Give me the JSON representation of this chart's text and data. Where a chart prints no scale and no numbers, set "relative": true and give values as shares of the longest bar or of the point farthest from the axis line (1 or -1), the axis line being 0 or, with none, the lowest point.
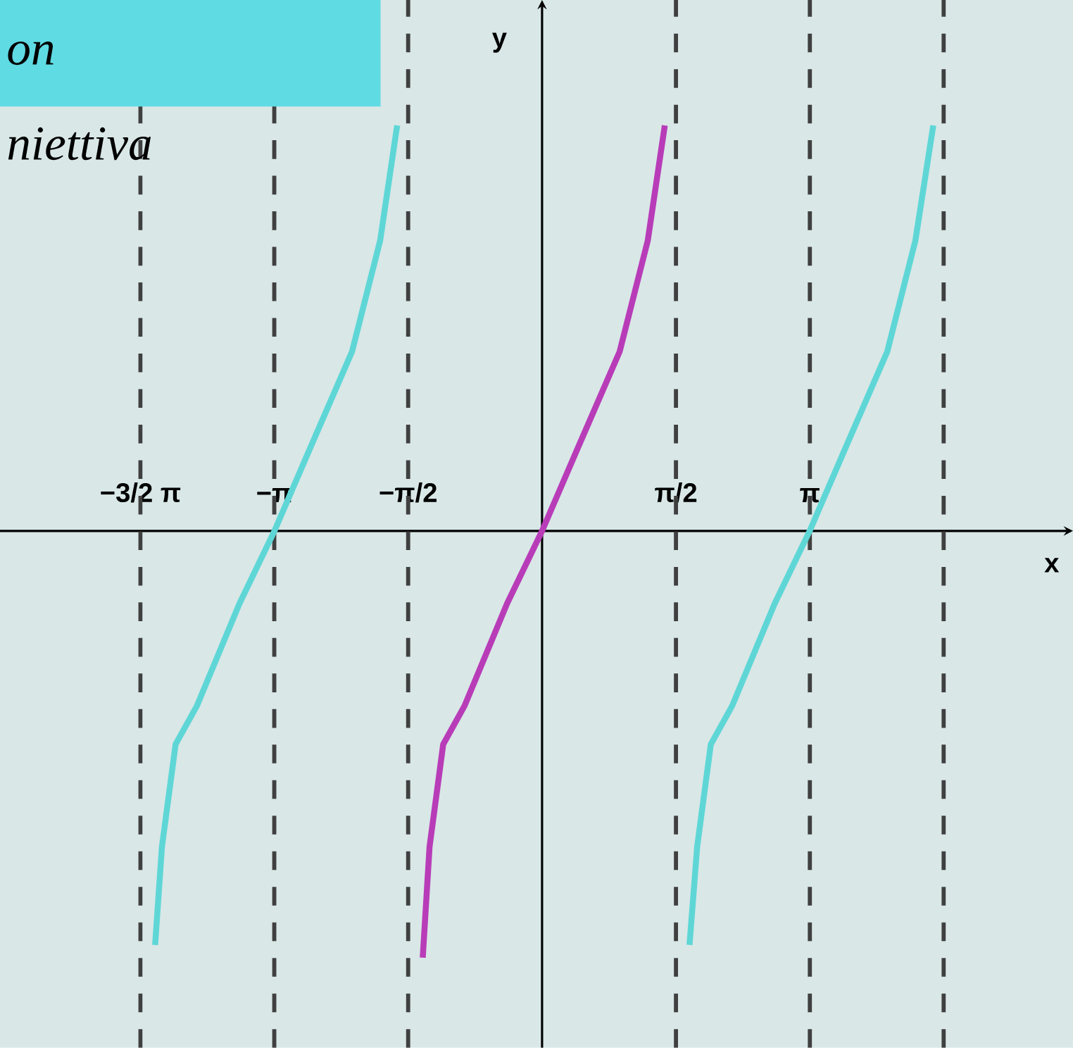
{
  "chart_data": {
    "type": "line",
    "title": "on",
    "subtitle": "niettiva",
    "xlabel": "x",
    "ylabel": "y",
    "relative": true,
    "tick_labels": "x",
    "xlim": [
      -6.36,
      6.23
    ],
    "xticks": [
      {
        "value": -4.712,
        "label": "−3/2 π"
      },
      {
        "value": -3.142,
        "label": "−π"
      },
      {
        "value": -1.571,
        "label": "−π/2"
      },
      {
        "value": 1.571,
        "label": "π/2"
      },
      {
        "value": 3.142,
        "label": "π"
      }
    ],
    "ref_lines": [
      {
        "axis": "x",
        "value": -4.712,
        "line_style": "dashed"
      },
      {
        "axis": "x",
        "value": -3.142,
        "line_style": "dashed"
      },
      {
        "axis": "x",
        "value": -1.571,
        "line_style": "dashed"
      },
      {
        "axis": "x",
        "value": 1.571,
        "line_style": "dashed"
      },
      {
        "axis": "x",
        "value": 3.142,
        "line_style": "dashed"
      },
      {
        "axis": "x",
        "value": 4.712,
        "line_style": "dashed"
      }
    ],
    "series": [
      {
        "color": "#5fd6d6",
        "x": [
          -4.54,
          -4.46,
          -4.3,
          -4.05,
          -3.55,
          -3.14,
          -2.73,
          -2.23,
          -1.9,
          -1.7
        ],
        "values": [
          -0.97,
          -0.74,
          -0.5,
          -0.41,
          -0.17,
          0,
          0.19,
          0.42,
          0.68,
          0.95
        ]
      },
      {
        "color": "#b83cb8",
        "x": [
          -1.4,
          -1.32,
          -1.16,
          -0.91,
          -0.41,
          0,
          0.41,
          0.91,
          1.24,
          1.44
        ],
        "values": [
          -1.0,
          -0.74,
          -0.5,
          -0.41,
          -0.17,
          0,
          0.19,
          0.42,
          0.68,
          0.95
        ]
      },
      {
        "color": "#5fd6d6",
        "x": [
          1.73,
          1.82,
          1.98,
          2.23,
          2.73,
          3.14,
          3.55,
          4.05,
          4.38,
          4.59
        ],
        "values": [
          -0.97,
          -0.74,
          -0.5,
          -0.41,
          -0.17,
          0,
          0.19,
          0.42,
          0.68,
          0.95
        ]
      }
    ]
  }
}
